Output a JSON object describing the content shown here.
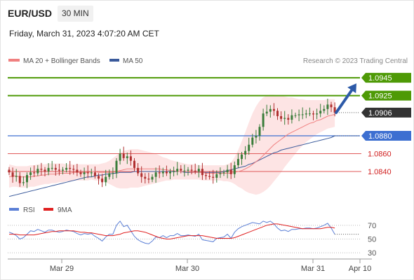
{
  "header": {
    "symbol": "EUR/USD",
    "timeframe": "30 MIN",
    "datetime": "Friday, March 31, 2023 4:07:20 AM CET"
  },
  "colors": {
    "ma20": "#f08080",
    "ma50": "#3a5a9b",
    "band_fill": "#fde4e4",
    "green": "#4e9a06",
    "blue_level": "#3d6fd1",
    "red_level": "#e05a5a",
    "current": "#333333",
    "candle_up": "#3a7d3a",
    "candle_down": "#b03030",
    "rsi": "#5b7fd6",
    "rsi_ma": "#e02020",
    "arrow": "#2d5aa8",
    "red_label_text": "#d02020"
  },
  "chart_data": [
    {
      "type": "candlestick",
      "title": "",
      "legend": [
        {
          "name": "MA 20 + Bollinger Bands",
          "color": "#f08080"
        },
        {
          "name": "MA 50",
          "color": "#3a5a9b"
        }
      ],
      "credit": "Research © 2023 Trading Central",
      "x_ticks": [
        "Mar 29",
        "Mar 30",
        "Mar 31",
        "Apr 10"
      ],
      "ylim": [
        1.08,
        1.096
      ],
      "levels": [
        {
          "value": 1.0945,
          "label": "1.0945",
          "kind": "resistance",
          "color": "#4e9a06"
        },
        {
          "value": 1.0925,
          "label": "1.0925",
          "kind": "resistance",
          "color": "#4e9a06"
        },
        {
          "value": 1.0906,
          "label": "1.0906",
          "kind": "current",
          "color": "#333333"
        },
        {
          "value": 1.088,
          "label": "1.0880",
          "kind": "pivot",
          "color": "#3d6fd1"
        },
        {
          "value": 1.086,
          "label": "1.0860",
          "kind": "support",
          "color": "#e05a5a"
        },
        {
          "value": 1.084,
          "label": "1.0840",
          "kind": "support",
          "color": "#e05a5a"
        }
      ],
      "close": [
        1.0839,
        1.0834,
        1.0835,
        1.0827,
        1.0828,
        1.0836,
        1.0839,
        1.0838,
        1.0843,
        1.0842,
        1.084,
        1.0844,
        1.0844,
        1.0842,
        1.0841,
        1.0842,
        1.0844,
        1.0843,
        1.0842,
        1.0839,
        1.0837,
        1.0839,
        1.0838,
        1.0839,
        1.0835,
        1.0832,
        1.0828,
        1.0834,
        1.0838,
        1.0838,
        1.0852,
        1.086,
        1.0855,
        1.0857,
        1.0852,
        1.0844,
        1.0838,
        1.0834,
        1.0832,
        1.0831,
        1.0834,
        1.0839,
        1.0838,
        1.084,
        1.0838,
        1.084,
        1.084,
        1.0843,
        1.0841,
        1.0841,
        1.0842,
        1.0841,
        1.084,
        1.0843,
        1.0836,
        1.0835,
        1.0834,
        1.0833,
        1.0837,
        1.0838,
        1.0839,
        1.0842,
        1.0837,
        1.0847,
        1.0854,
        1.0859,
        1.0863,
        1.087,
        1.0878,
        1.088,
        1.089,
        1.0905,
        1.0907,
        1.091,
        1.0908,
        1.0902,
        1.0899,
        1.09,
        1.0898,
        1.0903,
        1.0903,
        1.0904,
        1.0904,
        1.0905,
        1.0905,
        1.0904,
        1.0905,
        1.0908,
        1.091,
        1.0915,
        1.0912,
        1.0906
      ],
      "ma20": [
        1.0834,
        1.0835,
        1.0835,
        1.0834,
        1.0834,
        1.0834,
        1.0834,
        1.0835,
        1.0835,
        1.0836,
        1.0836,
        1.0837,
        1.0837,
        1.0837,
        1.0838,
        1.0838,
        1.0838,
        1.0838,
        1.0839,
        1.0839,
        1.0839,
        1.0839,
        1.0839,
        1.084,
        1.084,
        1.0839,
        1.0839,
        1.0839,
        1.0839,
        1.0839,
        1.084,
        1.0841,
        1.0842,
        1.0843,
        1.0843,
        1.0843,
        1.0843,
        1.0843,
        1.0843,
        1.0843,
        1.0843,
        1.0843,
        1.0843,
        1.0842,
        1.0842,
        1.0841,
        1.0841,
        1.084,
        1.084,
        1.084,
        1.084,
        1.0839,
        1.0839,
        1.0839,
        1.0839,
        1.0838,
        1.0838,
        1.0838,
        1.0838,
        1.0838,
        1.0838,
        1.0838,
        1.0838,
        1.0839,
        1.084,
        1.0841,
        1.0843,
        1.0845,
        1.0848,
        1.0851,
        1.0854,
        1.0858,
        1.0862,
        1.0866,
        1.087,
        1.0873,
        1.0876,
        1.0879,
        1.0882,
        1.0884,
        1.0886,
        1.0888,
        1.089,
        1.0892,
        1.0894,
        1.0895,
        1.0897,
        1.0898,
        1.09,
        1.0902,
        1.0903,
        1.0904
      ],
      "ma20_upper": [
        1.0848,
        1.0847,
        1.0846,
        1.0846,
        1.0846,
        1.0846,
        1.0847,
        1.0847,
        1.0848,
        1.0848,
        1.0848,
        1.0849,
        1.0849,
        1.0849,
        1.0849,
        1.0849,
        1.0848,
        1.0848,
        1.0848,
        1.0848,
        1.0848,
        1.0848,
        1.0848,
        1.0848,
        1.0848,
        1.0848,
        1.0849,
        1.085,
        1.0852,
        1.0855,
        1.0858,
        1.0861,
        1.0863,
        1.0864,
        1.0865,
        1.0865,
        1.0865,
        1.0864,
        1.0863,
        1.0862,
        1.0861,
        1.086,
        1.0858,
        1.0856,
        1.0855,
        1.0853,
        1.0852,
        1.0851,
        1.085,
        1.0849,
        1.0848,
        1.0848,
        1.0848,
        1.0847,
        1.0847,
        1.0847,
        1.0847,
        1.0847,
        1.0847,
        1.0847,
        1.0847,
        1.0848,
        1.085,
        1.0856,
        1.0864,
        1.0874,
        1.0884,
        1.0895,
        1.0905,
        1.0913,
        1.0919,
        1.0923,
        1.0925,
        1.0926,
        1.0926,
        1.0925,
        1.0925,
        1.0924,
        1.0923,
        1.0923,
        1.0922,
        1.0921,
        1.0921,
        1.092,
        1.092,
        1.092,
        1.092,
        1.092,
        1.092,
        1.0921,
        1.0921,
        1.0921
      ],
      "ma20_lower": [
        1.0822,
        1.0823,
        1.0823,
        1.0822,
        1.0822,
        1.0822,
        1.0823,
        1.0823,
        1.0824,
        1.0825,
        1.0826,
        1.0826,
        1.0827,
        1.0827,
        1.0828,
        1.0828,
        1.0829,
        1.0829,
        1.083,
        1.083,
        1.083,
        1.083,
        1.083,
        1.0831,
        1.083,
        1.083,
        1.0829,
        1.0828,
        1.0826,
        1.0824,
        1.0822,
        1.0821,
        1.0821,
        1.0821,
        1.0822,
        1.0822,
        1.0822,
        1.0823,
        1.0824,
        1.0825,
        1.0826,
        1.0827,
        1.0828,
        1.0829,
        1.083,
        1.083,
        1.0831,
        1.0831,
        1.0831,
        1.0831,
        1.0831,
        1.0831,
        1.0831,
        1.0831,
        1.083,
        1.083,
        1.083,
        1.083,
        1.083,
        1.083,
        1.0829,
        1.0829,
        1.0828,
        1.0826,
        1.0823,
        1.0821,
        1.0818,
        1.0816,
        1.0815,
        1.0814,
        1.0815,
        1.0817,
        1.082,
        1.0824,
        1.0829,
        1.0834,
        1.0839,
        1.0845,
        1.085,
        1.0855,
        1.086,
        1.0865,
        1.0869,
        1.0873,
        1.0876,
        1.0879,
        1.0882,
        1.0884,
        1.0886,
        1.0888,
        1.0889,
        1.089
      ],
      "ma50": [
        1.0812,
        1.0813,
        1.0814,
        1.0815,
        1.0816,
        1.0817,
        1.0818,
        1.0819,
        1.082,
        1.0821,
        1.0822,
        1.0823,
        1.0824,
        1.0825,
        1.0826,
        1.0827,
        1.0828,
        1.0829,
        1.083,
        1.0831,
        1.0832,
        1.0833,
        1.0834,
        1.0834,
        1.0835,
        1.0836,
        1.0836,
        1.0837,
        1.0837,
        1.0838,
        1.0838,
        1.0839,
        1.0839,
        1.0839,
        1.0839,
        1.084,
        1.084,
        1.084,
        1.084,
        1.084,
        1.084,
        1.084,
        1.084,
        1.084,
        1.084,
        1.084,
        1.084,
        1.084,
        1.084,
        1.0839,
        1.0839,
        1.0839,
        1.0839,
        1.0839,
        1.0839,
        1.0839,
        1.0839,
        1.0839,
        1.0839,
        1.0839,
        1.084,
        1.0841,
        1.0842,
        1.0843,
        1.0844,
        1.0845,
        1.0846,
        1.0848,
        1.0849,
        1.0851,
        1.0853,
        1.0855,
        1.0857,
        1.0859,
        1.0861,
        1.0862,
        1.0864,
        1.0865,
        1.0866,
        1.0867,
        1.0868,
        1.0869,
        1.087,
        1.0871,
        1.0872,
        1.0873,
        1.0874,
        1.0875,
        1.0876,
        1.0877,
        1.0878,
        1.088
      ],
      "projection": {
        "from": 1.0906,
        "to": 1.0945
      }
    },
    {
      "type": "line",
      "title": "",
      "legend": [
        {
          "name": "RSI",
          "color": "#5b7fd6"
        },
        {
          "name": "9MA",
          "color": "#e02020"
        }
      ],
      "ylim": [
        20,
        80
      ],
      "y_ticks": [
        70,
        50,
        30
      ],
      "rsi": [
        60,
        58,
        55,
        50,
        52,
        57,
        62,
        61,
        64,
        62,
        60,
        63,
        63,
        61,
        60,
        61,
        63,
        62,
        61,
        58,
        56,
        58,
        57,
        58,
        54,
        51,
        47,
        53,
        57,
        57,
        70,
        76,
        68,
        70,
        62,
        54,
        49,
        46,
        44,
        43,
        47,
        53,
        52,
        55,
        52,
        55,
        55,
        58,
        55,
        55,
        56,
        55,
        54,
        57,
        49,
        48,
        47,
        46,
        51,
        52,
        53,
        57,
        51,
        60,
        65,
        68,
        70,
        72,
        74,
        73,
        72,
        76,
        74,
        76,
        72,
        66,
        62,
        63,
        61,
        64,
        64,
        65,
        65,
        66,
        66,
        65,
        66,
        68,
        70,
        73,
        66,
        57
      ],
      "ma9": [
        57,
        57,
        57,
        56,
        56,
        56,
        56,
        56,
        57,
        58,
        59,
        60,
        61,
        61,
        62,
        62,
        62,
        62,
        62,
        61,
        60,
        60,
        59,
        59,
        58,
        57,
        56,
        55,
        55,
        55,
        56,
        57,
        59,
        60,
        61,
        62,
        62,
        61,
        60,
        58,
        56,
        54,
        52,
        51,
        50,
        50,
        51,
        52,
        53,
        54,
        55,
        55,
        55,
        55,
        55,
        54,
        53,
        52,
        51,
        51,
        51,
        51,
        51,
        52,
        54,
        56,
        58,
        60,
        62,
        64,
        66,
        68,
        70,
        71,
        72,
        72,
        71,
        70,
        69,
        68,
        67,
        66,
        65,
        65,
        65,
        65,
        65,
        65,
        66,
        67,
        67,
        66
      ]
    }
  ]
}
